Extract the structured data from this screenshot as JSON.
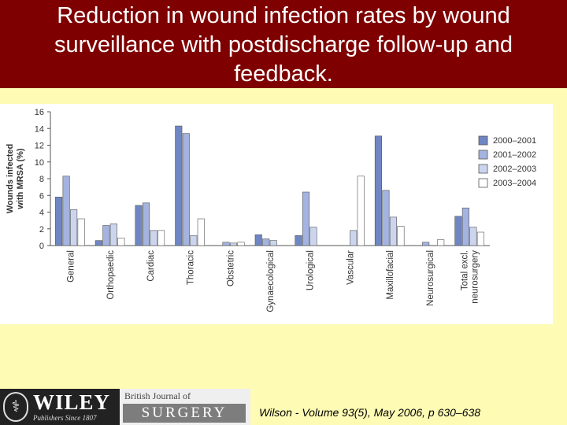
{
  "slide": {
    "title_lines": [
      "Reduction in wound infection rates by wound",
      "surveillance with postdischarge follow-up and",
      "feedback."
    ],
    "citation": "Wilson - Volume 93(5), May 2006, p 630–638",
    "publisher": {
      "logo_text": "WILEY",
      "logo_subtext": "Publishers Since 1807",
      "journal_top": "British Journal of",
      "journal_bottom": "SURGERY"
    }
  },
  "chart_data": {
    "type": "bar",
    "title": "",
    "ylabel": "Wounds infected with MRSA (%)",
    "xlabel": "",
    "ylim": [
      0,
      16
    ],
    "yticks": [
      0,
      2,
      4,
      6,
      8,
      10,
      12,
      14,
      16
    ],
    "grid": false,
    "legend_position": "right",
    "categories": [
      "General",
      "Orthopaedic",
      "Cardiac",
      "Thoracic",
      "Obstetric",
      "Gynaecological",
      "Urological",
      "Vascular",
      "Maxillofacial",
      "Neurosurgical",
      "Total excl. neurosurgery"
    ],
    "series": [
      {
        "name": "2000–2001",
        "color": "#6f86c4",
        "values": [
          5.8,
          0.6,
          4.8,
          14.3,
          0,
          1.3,
          1.2,
          0,
          13.1,
          0,
          3.5
        ]
      },
      {
        "name": "2001–2002",
        "color": "#a4b3df",
        "values": [
          8.3,
          2.4,
          5.1,
          13.4,
          0.4,
          0.8,
          6.4,
          0,
          6.6,
          0.4,
          4.5
        ]
      },
      {
        "name": "2002–2003",
        "color": "#ccd5ee",
        "values": [
          4.3,
          2.6,
          1.8,
          1.2,
          0.3,
          0.6,
          2.2,
          1.8,
          3.4,
          0,
          2.2
        ]
      },
      {
        "name": "2003–2004",
        "color": "#ffffff",
        "values": [
          3.2,
          0.9,
          1.8,
          3.2,
          0.4,
          0,
          0,
          8.3,
          2.3,
          0.7,
          1.6
        ]
      }
    ]
  }
}
